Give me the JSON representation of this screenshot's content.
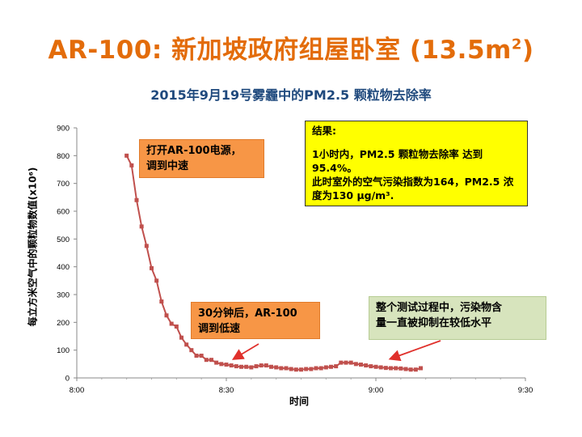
{
  "slide": {
    "title_main": "AR-100: 新加坡政府组屋卧室 (13.5m",
    "title_sup": "2",
    "title_end": ")"
  },
  "chart_data": {
    "type": "line",
    "title": "2015年9月19号雾霾中的PM2.5 颗粒物去除率",
    "xlabel": "时间",
    "ylabel": "每立方米空气中的颗粒物数值(x10⁶)",
    "xlim": [
      "8:00",
      "9:30"
    ],
    "ylim": [
      0,
      900
    ],
    "y_ticks": [
      "0",
      "100",
      "200",
      "300",
      "400",
      "500",
      "600",
      "700",
      "800",
      "900"
    ],
    "x_ticks": [
      "8:00",
      "8:30",
      "9:00",
      "9:30"
    ],
    "grid": false,
    "series": [
      {
        "color": "#c0504d",
        "x": [
          "8:10",
          "8:11",
          "8:12",
          "8:13",
          "8:14",
          "8:15",
          "8:16",
          "8:17",
          "8:18",
          "8:19",
          "8:20",
          "8:21",
          "8:22",
          "8:23",
          "8:24",
          "8:25",
          "8:26",
          "8:27",
          "8:28",
          "8:29",
          "8:30",
          "8:31",
          "8:32",
          "8:33",
          "8:34",
          "8:35",
          "8:36",
          "8:37",
          "8:38",
          "8:39",
          "8:40",
          "8:41",
          "8:42",
          "8:43",
          "8:44",
          "8:45",
          "8:46",
          "8:47",
          "8:48",
          "8:49",
          "8:50",
          "8:51",
          "8:52",
          "8:53",
          "8:54",
          "8:55",
          "8:56",
          "8:57",
          "8:58",
          "8:59",
          "9:00",
          "9:01",
          "9:02",
          "9:03",
          "9:04",
          "9:05",
          "9:06",
          "9:07",
          "9:08",
          "9:09"
        ],
        "y": [
          800,
          765,
          640,
          545,
          475,
          395,
          350,
          275,
          225,
          195,
          185,
          145,
          120,
          100,
          80,
          80,
          65,
          65,
          55,
          50,
          48,
          45,
          42,
          40,
          40,
          38,
          42,
          45,
          45,
          40,
          38,
          35,
          35,
          32,
          30,
          30,
          32,
          32,
          35,
          35,
          38,
          40,
          42,
          55,
          55,
          55,
          50,
          48,
          45,
          42,
          40,
          38,
          36,
          35,
          35,
          34,
          32,
          30,
          30,
          35
        ]
      }
    ]
  },
  "callouts": {
    "c1_line1": "打开AR-100电源，",
    "c1_line2": "调到中速",
    "c2_line1": "30分钟后，AR-100",
    "c2_line2": "调到低速",
    "c3_line1": "整个测试过程中，污染物含",
    "c3_line2": "量一直被抑制在较低水平"
  },
  "result": {
    "heading": "结果:",
    "line1": "1小时内，PM2.5 颗粒物去除率 达到95.4%。",
    "line2": "此时室外的空气污染指数为164，PM2.5 浓",
    "line3": "度为130 μg/m³."
  },
  "colors": {
    "title": "#e36c0a",
    "subtitle": "#1f497d",
    "series": "#c0504d",
    "callout_orange": "#f79646",
    "callout_green": "#d7e4bd",
    "result_bg": "#ffff00"
  }
}
